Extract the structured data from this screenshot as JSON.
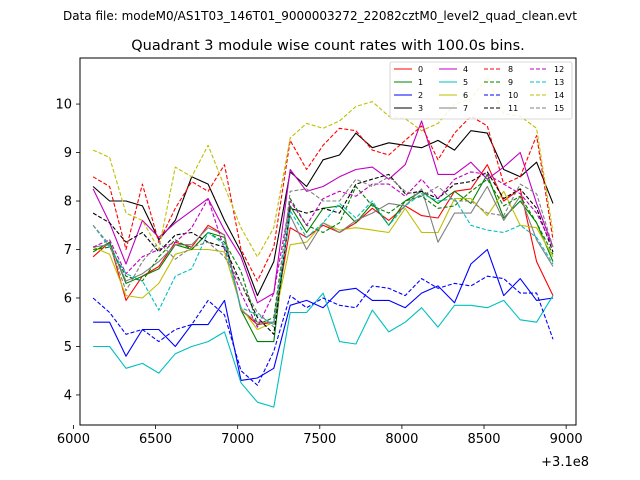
{
  "figure": {
    "suptitle": "Data file: modeM0/AS1T03_146T01_9000003272_22082cztM0_level2_quad_clean.evt"
  },
  "chart_data": {
    "type": "line",
    "title": "Quadrant 3 module wise count rates with 100.0s bins.",
    "xlabel": "",
    "ylabel": "",
    "offset_text": "+3.1e8",
    "xlim": [
      6040,
      9060
    ],
    "ylim": [
      3.38,
      10.95
    ],
    "xticks": [
      6000,
      6500,
      7000,
      7500,
      8000,
      8500,
      9000
    ],
    "xtick_labels": [
      "6000",
      "6500",
      "7000",
      "7500",
      "8000",
      "8500",
      "9000"
    ],
    "yticks": [
      4,
      5,
      6,
      7,
      8,
      9,
      10
    ],
    "ytick_labels": [
      "4",
      "5",
      "6",
      "7",
      "8",
      "9",
      "10"
    ],
    "grid": false,
    "legend_position": "top-right",
    "x": [
      6120,
      6220,
      6320,
      6420,
      6520,
      6620,
      6720,
      6820,
      6920,
      7020,
      7120,
      7220,
      7320,
      7420,
      7520,
      7620,
      7720,
      7820,
      7920,
      8020,
      8120,
      8220,
      8320,
      8420,
      8520,
      8620,
      8720,
      8820,
      8920
    ],
    "series": [
      {
        "name": "0",
        "color": "#ff0000",
        "dash": "solid",
        "values": [
          6.85,
          7.15,
          5.95,
          6.45,
          6.65,
          7.15,
          7.05,
          7.5,
          7.3,
          5.75,
          5.45,
          5.5,
          7.45,
          7.25,
          7.5,
          7.35,
          7.55,
          7.85,
          7.6,
          7.9,
          7.7,
          7.65,
          8.2,
          8.25,
          8.75,
          8.0,
          8.25,
          6.75,
          6.05
        ]
      },
      {
        "name": "1",
        "color": "#008000",
        "dash": "solid",
        "values": [
          6.95,
          7.15,
          6.3,
          6.45,
          6.6,
          7.1,
          7.0,
          7.35,
          7.25,
          5.75,
          5.1,
          5.1,
          7.9,
          7.35,
          7.85,
          7.9,
          7.55,
          7.95,
          7.5,
          8.0,
          8.2,
          7.95,
          8.2,
          7.95,
          8.55,
          7.65,
          8.0,
          7.55,
          6.75
        ]
      },
      {
        "name": "2",
        "color": "#0000ff",
        "dash": "solid",
        "values": [
          5.5,
          5.5,
          4.8,
          5.35,
          5.35,
          5.0,
          5.45,
          5.45,
          5.95,
          4.3,
          4.35,
          4.55,
          5.85,
          5.95,
          5.8,
          6.15,
          6.2,
          5.95,
          5.95,
          5.8,
          6.1,
          6.25,
          5.9,
          6.7,
          7.0,
          6.05,
          6.4,
          5.95,
          6.0
        ]
      },
      {
        "name": "3",
        "color": "#000000",
        "dash": "solid",
        "values": [
          8.3,
          8.0,
          8.0,
          7.9,
          7.2,
          7.6,
          8.5,
          8.35,
          7.6,
          6.95,
          6.05,
          6.75,
          8.6,
          8.3,
          8.85,
          8.95,
          9.4,
          9.1,
          9.2,
          9.15,
          9.1,
          9.25,
          9.05,
          9.45,
          9.4,
          8.65,
          8.5,
          8.8,
          7.95
        ]
      },
      {
        "name": "4",
        "color": "#bf00bf",
        "dash": "solid",
        "values": [
          8.25,
          7.55,
          6.7,
          7.6,
          7.25,
          7.55,
          7.8,
          8.05,
          7.4,
          6.85,
          5.9,
          6.1,
          8.65,
          8.2,
          8.3,
          8.5,
          8.65,
          8.7,
          8.45,
          8.75,
          9.65,
          8.55,
          8.55,
          8.8,
          8.45,
          8.7,
          9.0,
          7.95,
          7.05
        ]
      },
      {
        "name": "5",
        "color": "#00bfbf",
        "dash": "solid",
        "values": [
          5.0,
          5.0,
          4.55,
          4.65,
          4.45,
          4.85,
          5.0,
          5.1,
          5.3,
          4.25,
          3.85,
          3.75,
          5.7,
          5.7,
          6.1,
          5.1,
          5.05,
          5.75,
          5.3,
          5.5,
          5.8,
          5.4,
          5.85,
          5.85,
          5.8,
          5.95,
          5.55,
          5.5,
          6.05
        ]
      },
      {
        "name": "6",
        "color": "#bfbf00",
        "dash": "solid",
        "values": [
          7.05,
          6.9,
          6.05,
          6.0,
          6.3,
          6.9,
          7.0,
          7.0,
          6.95,
          5.8,
          5.35,
          5.5,
          7.1,
          7.15,
          7.55,
          7.4,
          7.45,
          7.4,
          7.35,
          7.85,
          7.35,
          7.35,
          8.05,
          8.05,
          7.7,
          8.2,
          7.5,
          7.45,
          6.85
        ]
      },
      {
        "name": "7",
        "color": "#808080",
        "dash": "solid",
        "values": [
          7.05,
          7.1,
          6.35,
          6.5,
          6.75,
          7.1,
          7.1,
          7.45,
          7.3,
          5.75,
          5.5,
          5.5,
          7.7,
          7.0,
          7.55,
          7.35,
          7.6,
          7.75,
          7.95,
          7.9,
          8.25,
          7.15,
          7.75,
          7.75,
          8.3,
          7.6,
          8.1,
          7.2,
          6.65
        ]
      },
      {
        "name": "8",
        "color": "#ff0000",
        "dash": "dashed",
        "values": [
          8.5,
          8.3,
          7.0,
          8.35,
          7.15,
          7.85,
          8.4,
          8.2,
          8.75,
          7.0,
          6.35,
          7.05,
          9.25,
          8.65,
          9.15,
          9.5,
          9.45,
          9.05,
          8.95,
          9.25,
          9.55,
          8.85,
          9.4,
          9.75,
          9.55,
          8.35,
          8.5,
          9.35,
          7.2
        ]
      },
      {
        "name": "9",
        "color": "#008000",
        "dash": "dashed",
        "values": [
          7.0,
          7.05,
          6.45,
          6.35,
          6.85,
          7.2,
          7.0,
          7.35,
          7.15,
          6.55,
          5.45,
          5.6,
          8.05,
          7.5,
          7.35,
          7.55,
          8.3,
          7.9,
          7.75,
          8.0,
          8.1,
          7.85,
          7.9,
          8.2,
          8.45,
          7.9,
          8.1,
          7.55,
          6.9
        ]
      },
      {
        "name": "10",
        "color": "#0000ff",
        "dash": "dashed",
        "values": [
          6.0,
          5.7,
          5.25,
          5.35,
          5.1,
          5.35,
          5.45,
          5.95,
          5.65,
          4.5,
          4.2,
          4.9,
          6.05,
          5.8,
          6.0,
          5.85,
          5.8,
          6.25,
          6.2,
          6.05,
          6.4,
          6.2,
          6.3,
          6.25,
          6.45,
          6.4,
          6.1,
          6.1,
          5.15
        ]
      },
      {
        "name": "11",
        "color": "#000000",
        "dash": "dashed",
        "values": [
          7.75,
          7.55,
          7.15,
          7.35,
          6.95,
          7.3,
          7.35,
          7.15,
          7.05,
          6.3,
          5.6,
          5.25,
          7.85,
          7.75,
          7.85,
          7.75,
          8.35,
          8.45,
          8.55,
          8.15,
          8.2,
          8.05,
          8.35,
          8.4,
          8.6,
          8.05,
          8.25,
          7.85,
          6.95
        ]
      },
      {
        "name": "12",
        "color": "#bf00bf",
        "dash": "dashed",
        "values": [
          7.05,
          7.2,
          6.5,
          6.85,
          7.0,
          7.15,
          7.45,
          8.05,
          7.0,
          6.1,
          5.4,
          6.1,
          8.0,
          7.5,
          8.05,
          8.2,
          8.1,
          8.35,
          8.35,
          8.1,
          8.45,
          8.05,
          8.45,
          8.6,
          8.55,
          8.35,
          8.15,
          7.75,
          7.05
        ]
      },
      {
        "name": "13",
        "color": "#00bfbf",
        "dash": "dashed",
        "values": [
          7.5,
          7.05,
          6.5,
          6.35,
          5.75,
          6.45,
          6.6,
          7.35,
          7.1,
          5.8,
          5.65,
          5.45,
          7.8,
          7.25,
          7.55,
          7.95,
          7.65,
          8.0,
          7.5,
          7.9,
          8.15,
          8.0,
          8.05,
          7.5,
          7.4,
          7.35,
          7.5,
          7.25,
          6.7
        ]
      },
      {
        "name": "14",
        "color": "#bfbf00",
        "dash": "dashed",
        "values": [
          9.05,
          8.9,
          7.75,
          7.6,
          7.0,
          8.7,
          8.5,
          9.15,
          8.3,
          7.45,
          6.85,
          7.45,
          9.3,
          9.6,
          9.5,
          9.65,
          9.95,
          10.05,
          9.75,
          9.7,
          9.45,
          9.6,
          10.0,
          10.1,
          10.55,
          9.8,
          9.75,
          9.5,
          7.35
        ]
      },
      {
        "name": "15",
        "color": "#808080",
        "dash": "dashed",
        "values": [
          7.5,
          7.1,
          6.15,
          6.75,
          7.15,
          6.8,
          7.05,
          7.15,
          6.85,
          6.3,
          5.7,
          5.4,
          8.2,
          8.25,
          8.0,
          8.0,
          8.45,
          8.3,
          8.5,
          8.2,
          8.1,
          8.3,
          8.0,
          8.0,
          7.75,
          7.7,
          8.35,
          8.15,
          7.05
        ]
      }
    ]
  }
}
